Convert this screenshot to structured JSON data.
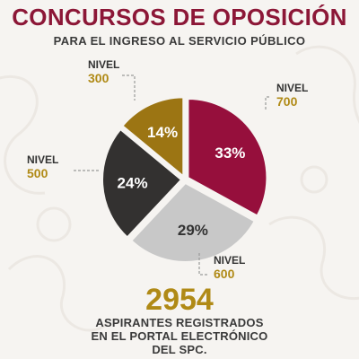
{
  "header": {
    "title": "CONCURSOS DE OPOSICIÓN",
    "subtitle": "PARA EL INGRESO AL SERVICIO PÚBLICO"
  },
  "colors": {
    "title": "#8c1737",
    "text": "#3a3a3a",
    "level_label": "#333333",
    "level_number": "#b08a16",
    "big_number": "#b08a16",
    "background": "#f6f4f1",
    "leader_line": "#9a9a9a"
  },
  "chart_data": {
    "type": "pie",
    "slices": [
      {
        "label_top": "NIVEL",
        "label_bottom": "700",
        "value": 33,
        "display": "33%",
        "color": "#960f3c",
        "text_color": "#ffffff"
      },
      {
        "label_top": "NIVEL",
        "label_bottom": "600",
        "value": 29,
        "display": "29%",
        "color": "#c8c8c8",
        "text_color": "#333333"
      },
      {
        "label_top": "NIVEL",
        "label_bottom": "500",
        "value": 24,
        "display": "24%",
        "color": "#333130",
        "text_color": "#ffffff"
      },
      {
        "label_top": "NIVEL",
        "label_bottom": "300",
        "value": 14,
        "display": "14%",
        "color": "#9c7513",
        "text_color": "#ffffff"
      }
    ]
  },
  "footer": {
    "count": "2954",
    "lines": [
      "ASPIRANTES REGISTRADOS",
      "EN EL PORTAL ELECTRÓNICO",
      "DEL SPC."
    ]
  }
}
